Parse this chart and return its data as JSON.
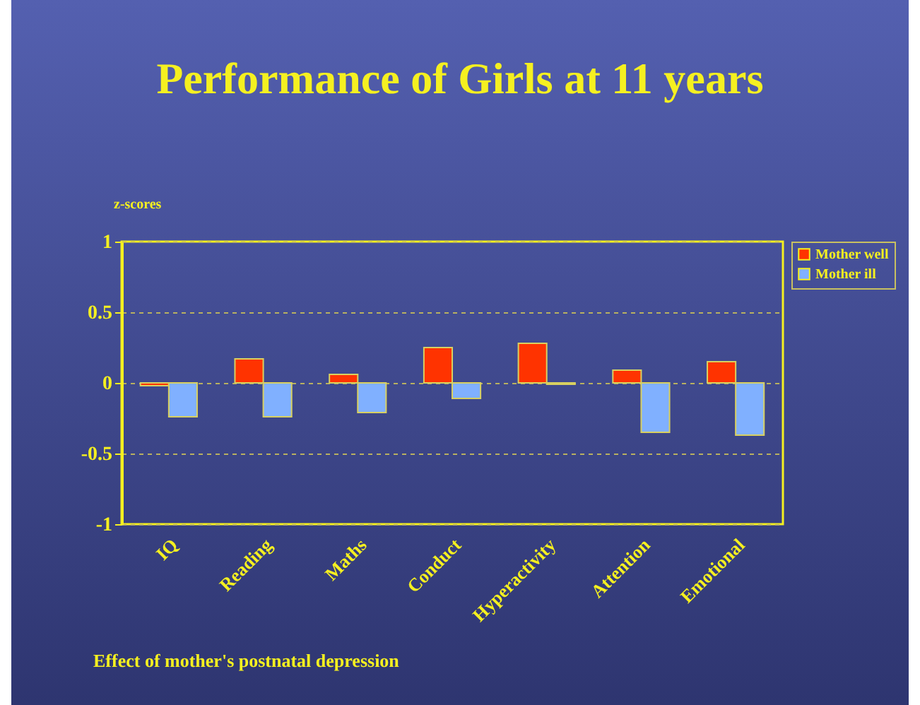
{
  "chart_data": {
    "type": "bar",
    "title": "Performance of Girls at 11 years",
    "ylabel": "z-scores",
    "categories": [
      "IQ",
      "Reading",
      "Maths",
      "Conduct",
      "Hyperactivity",
      "Attention",
      "Emotional"
    ],
    "series": [
      {
        "name": "Mother well",
        "color": "#ff3300",
        "values": [
          -0.02,
          0.17,
          0.06,
          0.25,
          0.28,
          0.09,
          0.15
        ]
      },
      {
        "name": "Mother ill",
        "color": "#80b0ff",
        "values": [
          -0.24,
          -0.24,
          -0.21,
          -0.11,
          -0.01,
          -0.35,
          -0.37
        ]
      }
    ],
    "ylim": [
      -1,
      1
    ],
    "yticks": [
      -1,
      -0.5,
      0,
      0.5,
      1
    ],
    "grid": "y",
    "legend": "right",
    "annotations": [
      "Effect of mother's postnatal depression"
    ]
  }
}
